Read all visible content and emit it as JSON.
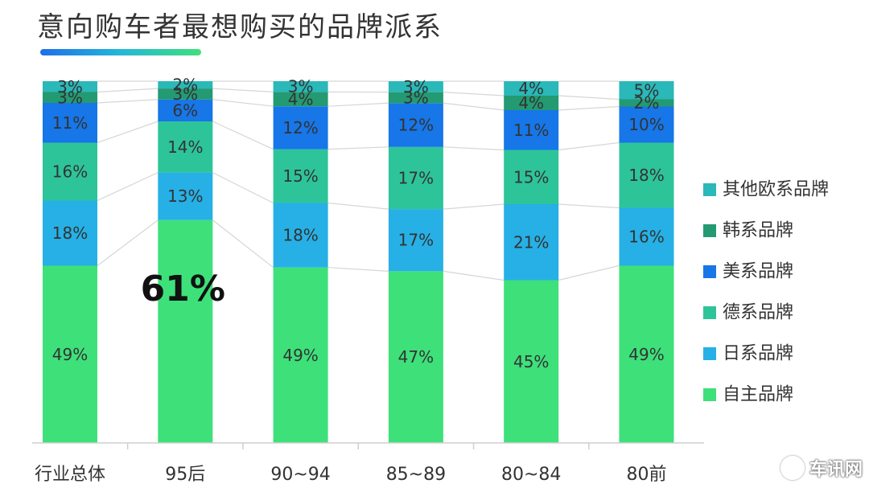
{
  "page": {
    "title": "意向购车者最想购买的品牌派系",
    "watermark": "车讯网"
  },
  "chart_data": {
    "type": "bar",
    "stacked": true,
    "normalized": true,
    "title": "意向购车者最想购买的品牌派系",
    "xlabel": "",
    "ylabel": "",
    "ylim": [
      0,
      100
    ],
    "grid": false,
    "legend_position": "right",
    "categories": [
      "行业总体",
      "95后",
      "90~94",
      "85~89",
      "80~84",
      "80前"
    ],
    "series": [
      {
        "name": "自主品牌",
        "color": "#3ee07a",
        "values": [
          49,
          61,
          49,
          47,
          45,
          49
        ],
        "labels": [
          "49%",
          "61%",
          "49%",
          "47%",
          "45%",
          "49%"
        ]
      },
      {
        "name": "日系品牌",
        "color": "#26b0e6",
        "values": [
          18,
          13,
          18,
          17,
          21,
          16
        ],
        "labels": [
          "18%",
          "13%",
          "18%",
          "17%",
          "21%",
          "16%"
        ]
      },
      {
        "name": "德系品牌",
        "color": "#2ec49a",
        "values": [
          16,
          14,
          15,
          17,
          15,
          18
        ],
        "labels": [
          "16%",
          "14%",
          "15%",
          "17%",
          "15%",
          "18%"
        ]
      },
      {
        "name": "美系品牌",
        "color": "#1776e8",
        "values": [
          11,
          6,
          12,
          12,
          11,
          10
        ],
        "labels": [
          "11%",
          "6%",
          "12%",
          "12%",
          "11%",
          "10%"
        ]
      },
      {
        "name": "韩系品牌",
        "color": "#239a72",
        "values": [
          3,
          3,
          4,
          3,
          4,
          2
        ],
        "labels": [
          "3%",
          "3%",
          "4%",
          "3%",
          "4%",
          "2%"
        ]
      },
      {
        "name": "其他欧系品牌",
        "color": "#2ab8b8",
        "values": [
          3,
          2,
          3,
          3,
          4,
          5
        ],
        "labels": [
          "3%",
          "2%",
          "3%",
          "3%",
          "4%",
          "5%"
        ]
      }
    ],
    "legend_order": [
      "其他欧系品牌",
      "韩系品牌",
      "美系品牌",
      "德系品牌",
      "日系品牌",
      "自主品牌"
    ],
    "highlight": {
      "category": "95后",
      "series": "自主品牌"
    }
  }
}
